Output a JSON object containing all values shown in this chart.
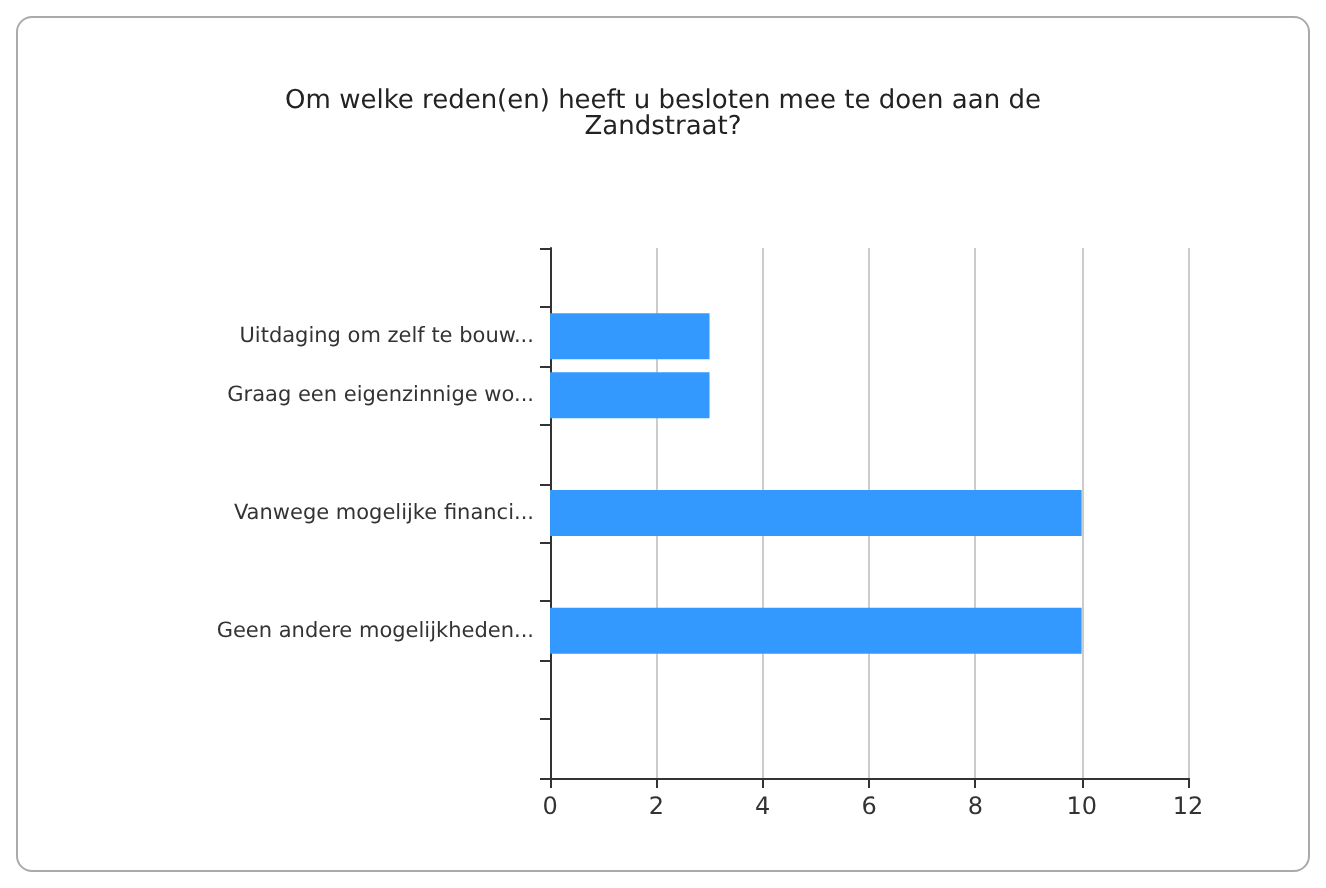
{
  "chart_data": {
    "type": "bar",
    "orientation": "horizontal",
    "title": "Om welke reden(en) heeft u besloten mee te doen aan de\nZandstraat?",
    "categories": [
      null,
      "Uitdaging om zelf te bouw...",
      "Graag een eigenzinnige wo...",
      null,
      "Vanwege mogelijke financi...",
      null,
      "Geen andere mogelijkheden...",
      null,
      null
    ],
    "values": [
      null,
      3,
      3,
      null,
      10,
      null,
      10,
      null,
      null
    ],
    "color": "#3399ff",
    "xlim": [
      0,
      12
    ],
    "xticks": [
      0,
      2,
      4,
      6,
      8,
      10,
      12
    ],
    "grid": "x"
  }
}
